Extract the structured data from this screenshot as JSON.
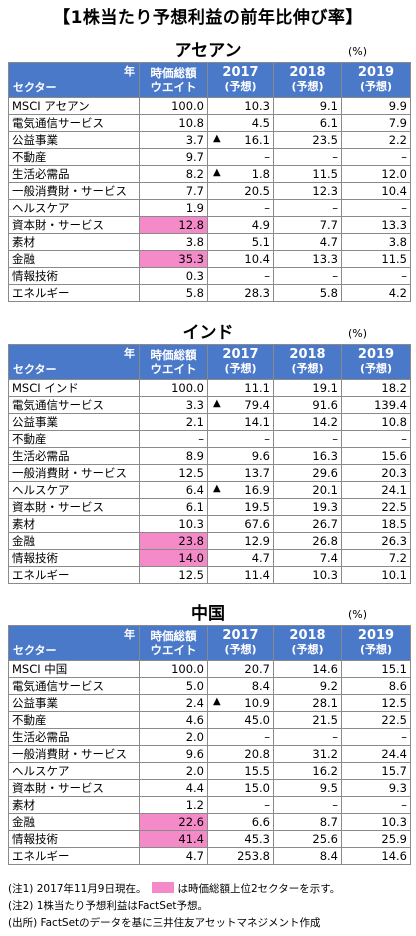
{
  "title": "【1株当たり予想利益の前年比伸び率】",
  "unit": "(%)",
  "header": {
    "year_label": "年",
    "sector_label": "セクター",
    "weight_line1": "時価総額",
    "weight_line2": "ウエイト",
    "years": [
      {
        "year": "2017",
        "sub": "(予想)"
      },
      {
        "year": "2018",
        "sub": "(予想)"
      },
      {
        "year": "2019",
        "sub": "(予想)"
      }
    ]
  },
  "sections": [
    {
      "name": "アセアン",
      "rows": [
        {
          "sector": "MSCI アセアン",
          "weight": "100.0",
          "y2017": "10.3",
          "y2018": "9.1",
          "y2019": "9.9"
        },
        {
          "sector": "電気通信サービス",
          "weight": "10.8",
          "y2017": "4.5",
          "y2018": "6.1",
          "y2019": "7.9"
        },
        {
          "sector": "公益事業",
          "weight": "3.7",
          "y2017": "16.1",
          "neg2017": true,
          "y2018": "23.5",
          "y2019": "2.2"
        },
        {
          "sector": "不動産",
          "weight": "9.7",
          "y2017": "–",
          "y2018": "–",
          "y2019": "–"
        },
        {
          "sector": "生活必需品",
          "weight": "8.2",
          "y2017": "1.8",
          "neg2017": true,
          "y2018": "11.5",
          "y2019": "12.0"
        },
        {
          "sector": "一般消費財・サービス",
          "weight": "7.7",
          "y2017": "20.5",
          "y2018": "12.3",
          "y2019": "10.4"
        },
        {
          "sector": "ヘルスケア",
          "weight": "1.9",
          "y2017": "–",
          "y2018": "–",
          "y2019": "–"
        },
        {
          "sector": "資本財・サービス",
          "weight": "12.8",
          "highlight": true,
          "y2017": "4.9",
          "y2018": "7.7",
          "y2019": "13.3"
        },
        {
          "sector": "素材",
          "weight": "3.8",
          "y2017": "5.1",
          "y2018": "4.7",
          "y2019": "3.8"
        },
        {
          "sector": "金融",
          "weight": "35.3",
          "highlight": true,
          "y2017": "10.4",
          "y2018": "13.3",
          "y2019": "11.5"
        },
        {
          "sector": "情報技術",
          "weight": "0.3",
          "y2017": "–",
          "y2018": "–",
          "y2019": "–"
        },
        {
          "sector": "エネルギー",
          "weight": "5.8",
          "y2017": "28.3",
          "y2018": "5.8",
          "y2019": "4.2"
        }
      ]
    },
    {
      "name": "インド",
      "rows": [
        {
          "sector": "MSCI インド",
          "weight": "100.0",
          "y2017": "11.1",
          "y2018": "19.1",
          "y2019": "18.2"
        },
        {
          "sector": "電気通信サービス",
          "weight": "3.3",
          "y2017": "79.4",
          "neg2017": true,
          "y2018": "91.6",
          "y2019": "139.4"
        },
        {
          "sector": "公益事業",
          "weight": "2.1",
          "y2017": "14.1",
          "y2018": "14.2",
          "y2019": "10.8"
        },
        {
          "sector": "不動産",
          "weight": "–",
          "y2017": "–",
          "y2018": "–",
          "y2019": "–"
        },
        {
          "sector": "生活必需品",
          "weight": "8.9",
          "y2017": "9.6",
          "y2018": "16.3",
          "y2019": "15.6"
        },
        {
          "sector": "一般消費財・サービス",
          "weight": "12.5",
          "y2017": "13.7",
          "y2018": "29.6",
          "y2019": "20.3"
        },
        {
          "sector": "ヘルスケア",
          "weight": "6.4",
          "y2017": "16.9",
          "neg2017": true,
          "y2018": "20.1",
          "y2019": "24.1"
        },
        {
          "sector": "資本財・サービス",
          "weight": "6.1",
          "y2017": "19.5",
          "y2018": "19.3",
          "y2019": "22.5"
        },
        {
          "sector": "素材",
          "weight": "10.3",
          "y2017": "67.6",
          "y2018": "26.7",
          "y2019": "18.5"
        },
        {
          "sector": "金融",
          "weight": "23.8",
          "highlight": true,
          "y2017": "12.9",
          "y2018": "26.8",
          "y2019": "26.3"
        },
        {
          "sector": "情報技術",
          "weight": "14.0",
          "highlight": true,
          "y2017": "4.7",
          "y2018": "7.4",
          "y2019": "7.2"
        },
        {
          "sector": "エネルギー",
          "weight": "12.5",
          "y2017": "11.4",
          "y2018": "10.3",
          "y2019": "10.1"
        }
      ]
    },
    {
      "name": "中国",
      "rows": [
        {
          "sector": "MSCI 中国",
          "weight": "100.0",
          "y2017": "20.7",
          "y2018": "14.6",
          "y2019": "15.1"
        },
        {
          "sector": "電気通信サービス",
          "weight": "5.0",
          "y2017": "8.4",
          "y2018": "9.2",
          "y2019": "8.6"
        },
        {
          "sector": "公益事業",
          "weight": "2.4",
          "y2017": "10.9",
          "neg2017": true,
          "y2018": "28.1",
          "y2019": "12.5"
        },
        {
          "sector": "不動産",
          "weight": "4.6",
          "y2017": "45.0",
          "y2018": "21.5",
          "y2019": "22.5"
        },
        {
          "sector": "生活必需品",
          "weight": "2.0",
          "y2017": "–",
          "y2018": "–",
          "y2019": "–"
        },
        {
          "sector": "一般消費財・サービス",
          "weight": "9.6",
          "y2017": "20.8",
          "y2018": "31.2",
          "y2019": "24.4"
        },
        {
          "sector": "ヘルスケア",
          "weight": "2.0",
          "y2017": "15.5",
          "y2018": "16.2",
          "y2019": "15.7"
        },
        {
          "sector": "資本財・サービス",
          "weight": "4.4",
          "y2017": "15.0",
          "y2018": "9.5",
          "y2019": "9.3"
        },
        {
          "sector": "素材",
          "weight": "1.2",
          "y2017": "–",
          "y2018": "–",
          "y2019": "–"
        },
        {
          "sector": "金融",
          "weight": "22.6",
          "highlight": true,
          "y2017": "6.6",
          "y2018": "8.7",
          "y2019": "10.3"
        },
        {
          "sector": "情報技術",
          "weight": "41.4",
          "highlight": true,
          "y2017": "45.3",
          "y2018": "25.6",
          "y2019": "25.9"
        },
        {
          "sector": "エネルギー",
          "weight": "4.7",
          "y2017": "253.8",
          "y2018": "8.4",
          "y2019": "14.6"
        }
      ]
    }
  ],
  "negative_marker": "▲",
  "highlight_color": "#f58ac8",
  "header_color": "#4b79c9",
  "notes": {
    "note1": "(注1) 2017年11月9日現在。",
    "note1_legend": "は時価総額上位2セクターを示す。",
    "note2": "(注2) 1株当たり予想利益はFactSet予想。",
    "source": "(出所) FactSetのデータを基に三井住友アセットマネジメント作成"
  }
}
